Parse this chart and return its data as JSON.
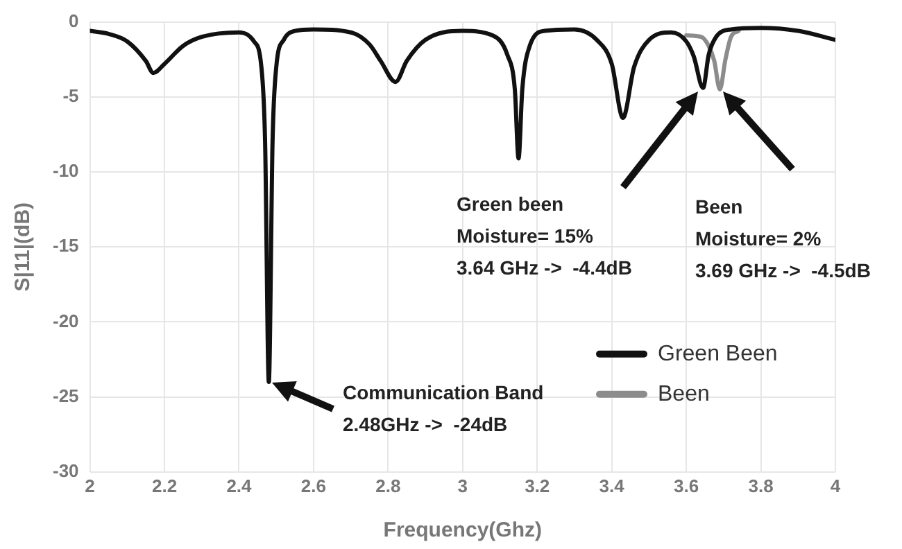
{
  "chart_data": {
    "type": "line",
    "xlabel": "Frequency(Ghz)",
    "ylabel": "S|11|(dB)",
    "xlim": [
      2,
      4
    ],
    "xticks": [
      2,
      2.2,
      2.4,
      2.6,
      2.8,
      3,
      3.2,
      3.4,
      3.6,
      3.8,
      4
    ],
    "ylim": [
      -30,
      0
    ],
    "yticks": [
      -30,
      -25,
      -20,
      -15,
      -10,
      -5,
      0
    ],
    "grid": true,
    "legend": "bottom right",
    "marker": "none",
    "line_style": "solid",
    "series": [
      {
        "name": "Green Been",
        "color": "#111111",
        "x": [
          2,
          2.05,
          2.1,
          2.15,
          2.17,
          2.2,
          2.25,
          2.3,
          2.4,
          2.44,
          2.46,
          2.47,
          2.48,
          2.49,
          2.5,
          2.52,
          2.55,
          2.6,
          2.7,
          2.75,
          2.78,
          2.82,
          2.85,
          2.9,
          3,
          3.08,
          3.12,
          3.14,
          3.15,
          3.16,
          3.18,
          3.22,
          3.3,
          3.36,
          3.4,
          3.43,
          3.46,
          3.5,
          3.56,
          3.6,
          3.62,
          3.645,
          3.66,
          3.68,
          3.72,
          3.8,
          3.9,
          4
        ],
        "values": [
          -0.6,
          -0.8,
          -1.3,
          -2.6,
          -3.4,
          -2.8,
          -1.6,
          -1.0,
          -0.7,
          -1.3,
          -3,
          -8,
          -24,
          -8,
          -3,
          -1.2,
          -0.6,
          -0.5,
          -0.7,
          -1.5,
          -2.6,
          -4.0,
          -2.6,
          -1.2,
          -0.6,
          -0.9,
          -2.2,
          -4.5,
          -9.1,
          -4.5,
          -1.6,
          -0.6,
          -0.5,
          -1.2,
          -2.8,
          -6.4,
          -3.0,
          -1.2,
          -0.7,
          -1.3,
          -2.3,
          -4.4,
          -2.2,
          -1.0,
          -0.5,
          -0.4,
          -0.6,
          -1.2
        ]
      },
      {
        "name": "Been",
        "color": "#8c8c8c",
        "x": [
          3.6,
          3.64,
          3.66,
          3.675,
          3.69,
          3.705,
          3.72,
          3.74
        ],
        "values": [
          -0.9,
          -1.0,
          -1.6,
          -2.6,
          -4.5,
          -2.5,
          -1.0,
          -0.6
        ]
      }
    ],
    "annotations": [
      "Communication Band\n2.48GHz ->  -24dB",
      "Green been\nMoisture= 15%\n3.64 GHz ->  -4.4dB",
      "Been\nMoisture= 2%\n3.69 GHz ->  -4.5dB"
    ]
  }
}
